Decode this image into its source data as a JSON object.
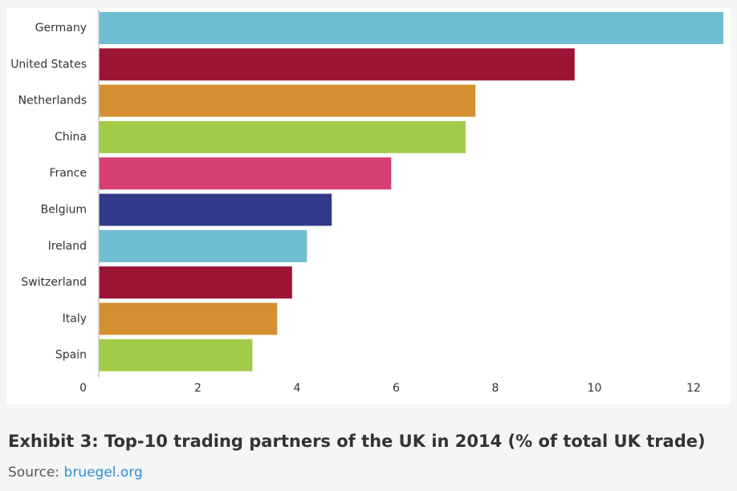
{
  "caption": {
    "title": "Exhibit 3: Top-10 trading partners of the UK in 2014 (% of total UK trade)",
    "source_prefix": "Source: ",
    "source_link": "bruegel.org"
  },
  "chart_data": {
    "type": "bar",
    "orientation": "horizontal",
    "title": "",
    "xlabel": "",
    "ylabel": "",
    "xlim": [
      0,
      12.6
    ],
    "xticks": [
      0,
      2,
      4,
      6,
      8,
      10,
      12
    ],
    "grid": false,
    "categories": [
      "Germany",
      "United States",
      "Netherlands",
      "China",
      "France",
      "Belgium",
      "Ireland",
      "Switzerland",
      "Italy",
      "Spain"
    ],
    "values": [
      12.6,
      9.6,
      7.6,
      7.4,
      5.9,
      4.7,
      4.2,
      3.9,
      3.6,
      3.1
    ],
    "colors": [
      "#6fbdd1",
      "#9b1434",
      "#d58f31",
      "#a2cb48",
      "#d63f74",
      "#333a8a",
      "#6fbdd1",
      "#9b1434",
      "#d58f31",
      "#a2cb48"
    ]
  }
}
